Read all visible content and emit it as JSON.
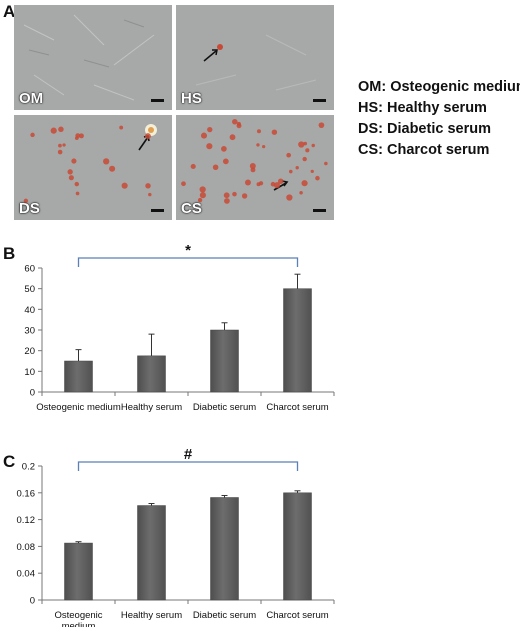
{
  "panels": {
    "a": "A",
    "b": "B",
    "c": "C"
  },
  "micrographs": [
    {
      "label": "OM"
    },
    {
      "label": "HS"
    },
    {
      "label": "DS"
    },
    {
      "label": "CS"
    }
  ],
  "legend": [
    {
      "abbr": "OM:",
      "text": "Osteogenic medium"
    },
    {
      "abbr": "HS:",
      "text": "Healthy serum"
    },
    {
      "abbr": "DS:",
      "text": "Diabetic serum"
    },
    {
      "abbr": "CS:",
      "text": "Charcot serum"
    }
  ],
  "colors": {
    "bar": "#6d6d6d",
    "bracket": "#5b7fb8",
    "micro_bg": "#a7a9a8",
    "stain": "#c84a36"
  },
  "chart_data": [
    {
      "type": "bar",
      "panel": "B",
      "categories": [
        "Osteogenic medium",
        "Healthy serum",
        "Diabetic serum",
        "Charcot serum"
      ],
      "values": [
        15,
        17.5,
        30,
        50
      ],
      "errors": [
        5.5,
        10.5,
        3.5,
        7
      ],
      "ylim": [
        0,
        60
      ],
      "yticks": [
        0,
        10,
        20,
        30,
        40,
        50,
        60
      ],
      "ytick_labels": [
        "0",
        "10",
        "20",
        "30",
        "40",
        "50",
        "60"
      ],
      "annotation": "*",
      "xlabel": "",
      "ylabel": "",
      "title": ""
    },
    {
      "type": "bar",
      "panel": "C",
      "categories": [
        "Osteogenic medium",
        "Healthy serum",
        "Diabetic serum",
        "Charcot serum"
      ],
      "category_lines": [
        [
          "Osteogenic",
          "medium"
        ],
        [
          "Healthy serum"
        ],
        [
          "Diabetic serum"
        ],
        [
          "Charcot serum"
        ]
      ],
      "values": [
        0.085,
        0.141,
        0.153,
        0.16
      ],
      "errors": [
        0.002,
        0.003,
        0.003,
        0.003
      ],
      "ylim": [
        0,
        0.2
      ],
      "yticks": [
        0,
        0.04,
        0.08,
        0.12,
        0.16,
        0.2
      ],
      "ytick_labels": [
        "0",
        "0.04",
        "0.08",
        "0.12",
        "0.16",
        "0.2"
      ],
      "annotation": "#",
      "xlabel": "",
      "ylabel": "",
      "title": ""
    }
  ]
}
